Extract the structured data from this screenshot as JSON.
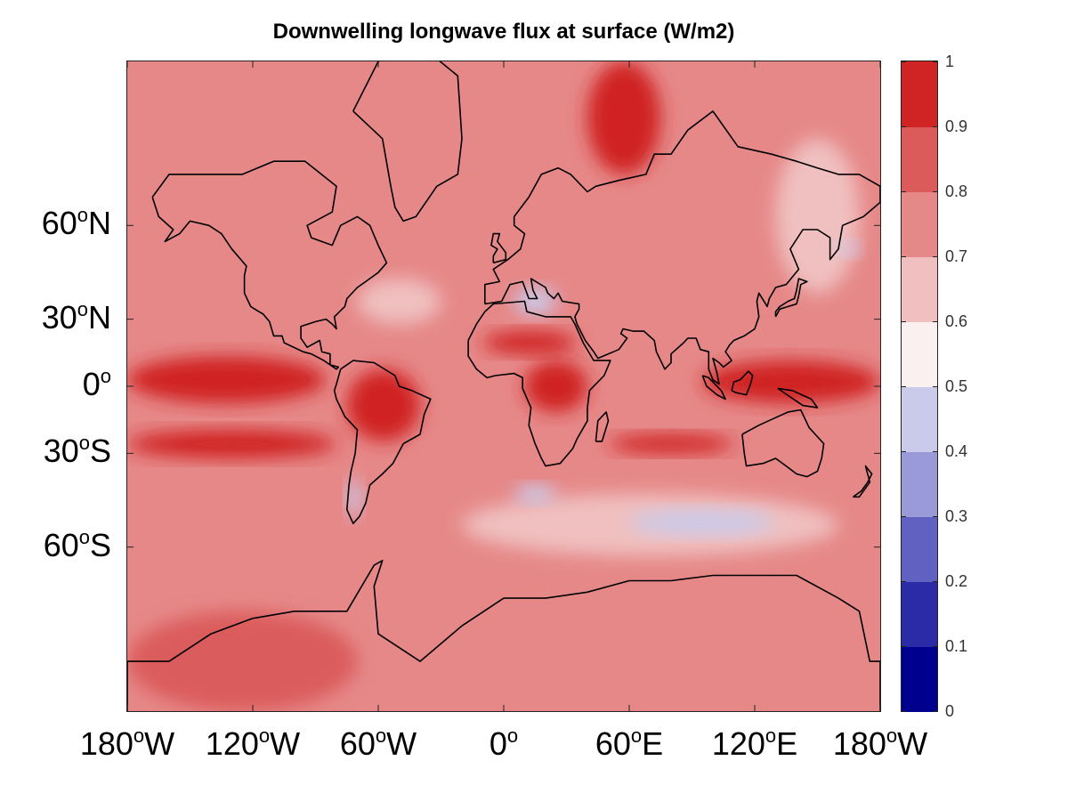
{
  "chart_data": {
    "type": "heatmap",
    "title": "Downwelling longwave flux at surface (W/m2)",
    "x_ticks": [
      {
        "deg": "180",
        "suffix": "W",
        "lon": -180
      },
      {
        "deg": "120",
        "suffix": "W",
        "lon": -120
      },
      {
        "deg": "60",
        "suffix": "W",
        "lon": -60
      },
      {
        "deg": "0",
        "suffix": "",
        "lon": 0
      },
      {
        "deg": "60",
        "suffix": "E",
        "lon": 60
      },
      {
        "deg": "120",
        "suffix": "E",
        "lon": 120
      },
      {
        "deg": "180",
        "suffix": "W",
        "lon": 180
      }
    ],
    "y_ticks": [
      {
        "deg": "60",
        "suffix": "N",
        "lat": 60
      },
      {
        "deg": "30",
        "suffix": "N",
        "lat": 30
      },
      {
        "deg": "0",
        "suffix": "",
        "lat": 0
      },
      {
        "deg": "30",
        "suffix": "S",
        "lat": -30
      },
      {
        "deg": "60",
        "suffix": "S",
        "lat": -60
      }
    ],
    "xlim": [
      -180,
      180
    ],
    "ylim": [
      -82,
      82
    ],
    "projection": "mercator",
    "colorbar": {
      "ticks": [
        "0",
        "0.1",
        "0.2",
        "0.3",
        "0.4",
        "0.5",
        "0.6",
        "0.7",
        "0.8",
        "0.9",
        "1"
      ],
      "range": [
        0,
        1
      ],
      "level_colors": [
        "#00008f",
        "#2b2ba8",
        "#6161c2",
        "#9a9ad8",
        "#cacaea",
        "#fbf0f0",
        "#f0c0c0",
        "#e68888",
        "#db5b5b",
        "#d02424"
      ]
    },
    "background_level": 0.78,
    "regions": [
      {
        "name": "tropical-pacific-band",
        "lon": [
          -180,
          -85
        ],
        "lat": [
          -8,
          14
        ],
        "value": 0.93
      },
      {
        "name": "equatorial-indo-pacific",
        "lon": [
          95,
          180
        ],
        "lat": [
          -8,
          12
        ],
        "value": 0.92
      },
      {
        "name": "amazon",
        "lon": [
          -75,
          -40
        ],
        "lat": [
          -25,
          8
        ],
        "value": 0.92
      },
      {
        "name": "central-africa",
        "lon": [
          10,
          40
        ],
        "lat": [
          -12,
          12
        ],
        "value": 0.91
      },
      {
        "name": "sahara-band",
        "lon": [
          -10,
          35
        ],
        "lat": [
          15,
          25
        ],
        "value": 0.9
      },
      {
        "name": "south-pacific-band",
        "lon": [
          -180,
          -80
        ],
        "lat": [
          -32,
          -20
        ],
        "value": 0.91
      },
      {
        "name": "south-indian-band",
        "lon": [
          50,
          110
        ],
        "lat": [
          -30,
          -22
        ],
        "value": 0.91
      },
      {
        "name": "arctic-north-atlantic",
        "lon": [
          40,
          75
        ],
        "lat": [
          70,
          82
        ],
        "value": 0.92
      },
      {
        "name": "mid-atlantic-north",
        "lon": [
          -70,
          -30
        ],
        "lat": [
          28,
          45
        ],
        "value": 0.68
      },
      {
        "name": "north-pacific-east",
        "lon": [
          -180,
          -130
        ],
        "lat": [
          25,
          45
        ],
        "value": 0.72
      },
      {
        "name": "northwest-pacific",
        "lon": [
          130,
          170
        ],
        "lat": [
          40,
          75
        ],
        "value": 0.68
      },
      {
        "name": "southern-ocean-low",
        "lon": [
          -20,
          160
        ],
        "lat": [
          -62,
          -45
        ],
        "value": 0.64
      },
      {
        "name": "mediterranean-dip",
        "lon": [
          5,
          25
        ],
        "lat": [
          32,
          42
        ],
        "value": 0.45
      },
      {
        "name": "south-indian-ocean-dip",
        "lon": [
          60,
          130
        ],
        "lat": [
          -57,
          -50
        ],
        "value": 0.46
      },
      {
        "name": "south-atlantic-dip",
        "lon": [
          5,
          25
        ],
        "lat": [
          -48,
          -42
        ],
        "value": 0.45
      },
      {
        "name": "patagonia-dip",
        "lon": [
          -75,
          -68
        ],
        "lat": [
          -52,
          -40
        ],
        "value": 0.48
      },
      {
        "name": "northwest-pacific-dip",
        "lon": [
          160,
          170
        ],
        "lat": [
          52,
          56
        ],
        "value": 0.45
      },
      {
        "name": "antarctica-ross",
        "lon": [
          -180,
          -70
        ],
        "lat": [
          -82,
          -72
        ],
        "value": 0.84
      }
    ]
  }
}
